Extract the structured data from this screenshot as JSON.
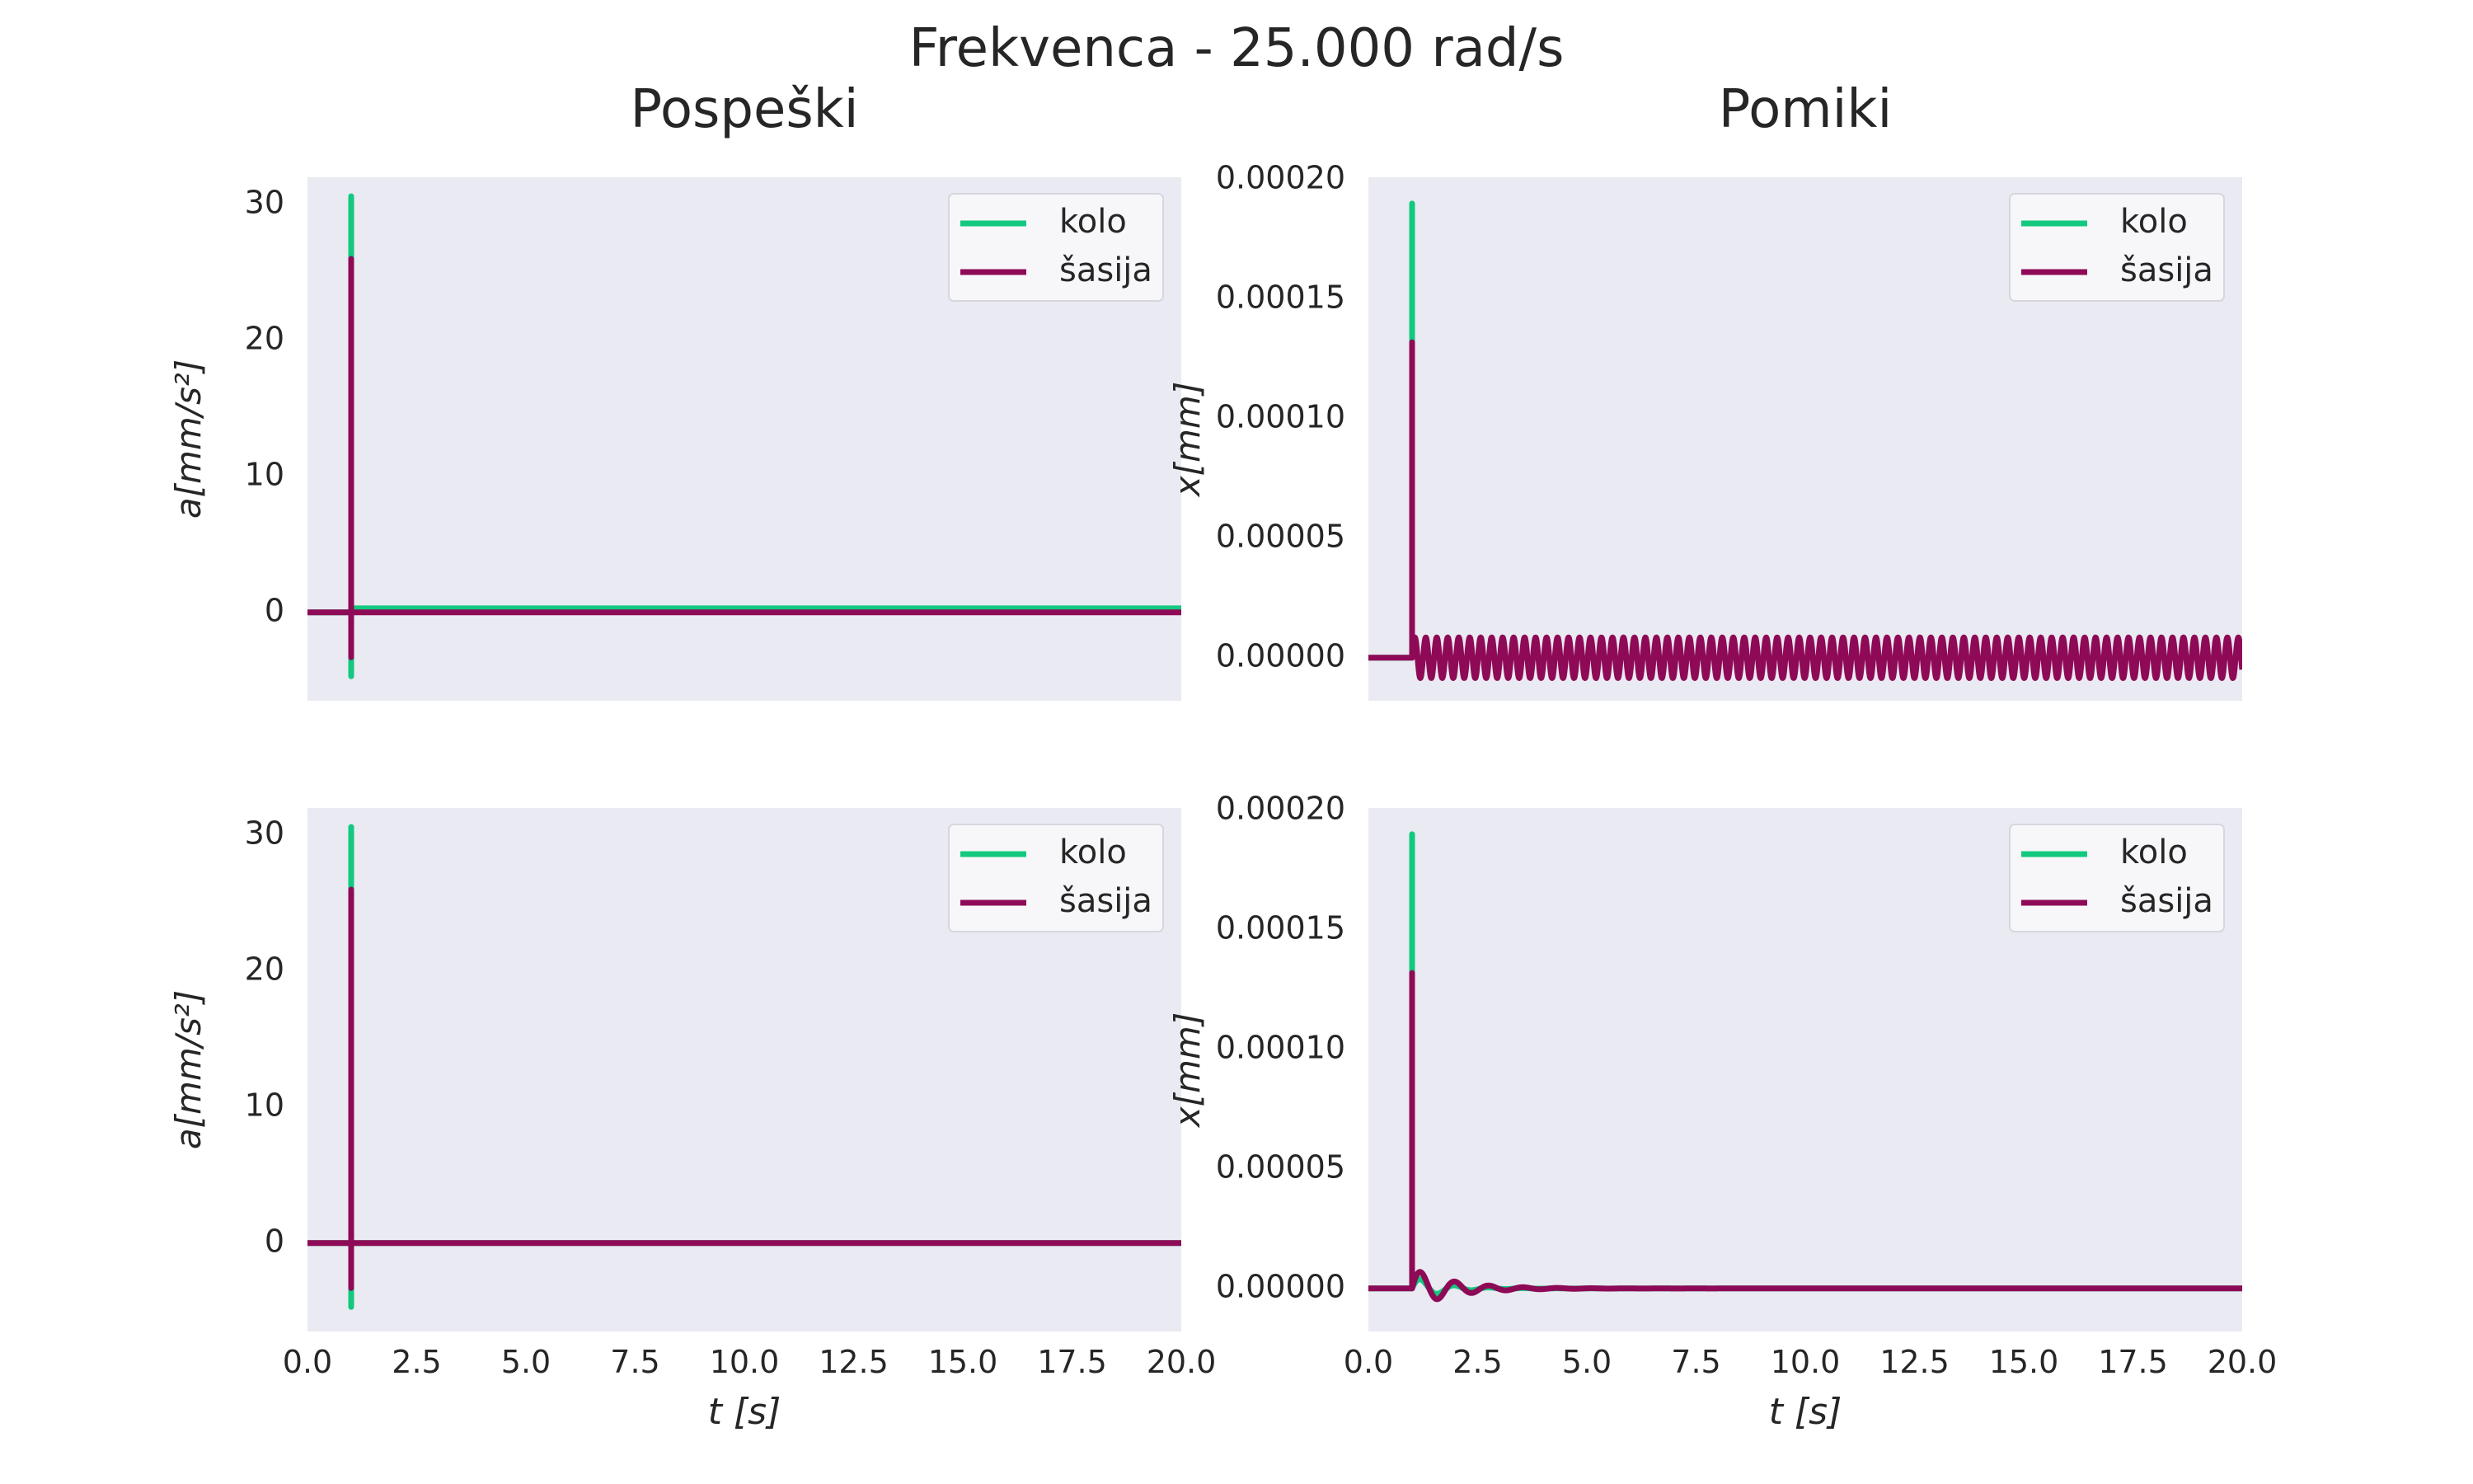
{
  "figure": {
    "suptitle": "Frekvenca - 25.000 rad/s",
    "column_titles": [
      "Pospeški",
      "Pomiki"
    ],
    "background": "#ffffff",
    "axes_background": "#eaeaf2"
  },
  "colors": {
    "kolo": "#12c97f",
    "sasija": "#8e0a56"
  },
  "chart_data": [
    {
      "id": "acc-top",
      "type": "line",
      "ylabel": "a[mm/s²]",
      "xlabel": "",
      "xlim": [
        0,
        20
      ],
      "ylim": [
        -6.5,
        32
      ],
      "yticks": [
        0,
        10,
        20,
        30
      ],
      "ytick_labels": [
        "0",
        "10",
        "20",
        "30"
      ],
      "xticks": [],
      "xtick_labels": [],
      "grid": false,
      "legend_position": "top-right",
      "series": [
        {
          "name": "kolo",
          "color": "#12c97f",
          "x": [
            0,
            1,
            1,
            1,
            1,
            20
          ],
          "y": [
            0,
            0,
            30.6,
            -4.7,
            0.3,
            0.3
          ]
        },
        {
          "name": "šasija",
          "color": "#8e0a56",
          "x": [
            0,
            1,
            1,
            1,
            1,
            20
          ],
          "y": [
            0,
            0,
            26.0,
            -3.3,
            0,
            0
          ]
        }
      ]
    },
    {
      "id": "disp-top",
      "type": "line",
      "ylabel": "x[mm]",
      "xlabel": "",
      "xlim": [
        0,
        20
      ],
      "ylim": [
        -1.8e-05,
        0.000201
      ],
      "yticks": [
        0,
        5e-05,
        0.0001,
        0.00015,
        0.0002
      ],
      "ytick_labels": [
        "0.00000",
        "0.00005",
        "0.00010",
        "0.00015",
        "0.00020"
      ],
      "xticks": [],
      "xtick_labels": [],
      "grid": false,
      "legend_position": "top-right",
      "series": [
        {
          "name": "kolo",
          "color": "#12c97f",
          "spike": {
            "t": 1,
            "peak": 0.00019
          },
          "oscillation": {
            "start": 1,
            "amplitude": 4e-06,
            "offset": 0,
            "omega": 25.0,
            "decay": 0
          }
        },
        {
          "name": "šasija",
          "color": "#8e0a56",
          "spike": {
            "t": 1,
            "peak": 0.000132
          },
          "oscillation": {
            "start": 1,
            "amplitude": 8.5e-06,
            "offset": 0,
            "omega": 25.0,
            "decay": 0
          }
        }
      ]
    },
    {
      "id": "acc-bottom",
      "type": "line",
      "ylabel": "a[mm/s²]",
      "xlabel": "t [s]",
      "xlim": [
        0,
        20
      ],
      "ylim": [
        -6.5,
        32
      ],
      "yticks": [
        0,
        10,
        20,
        30
      ],
      "ytick_labels": [
        "0",
        "10",
        "20",
        "30"
      ],
      "xticks": [
        0,
        2.5,
        5,
        7.5,
        10,
        12.5,
        15,
        17.5,
        20
      ],
      "xtick_labels": [
        "0.0",
        "2.5",
        "5.0",
        "7.5",
        "10.0",
        "12.5",
        "15.0",
        "17.5",
        "20.0"
      ],
      "grid": false,
      "legend_position": "top-right",
      "series": [
        {
          "name": "kolo",
          "color": "#12c97f",
          "x": [
            0,
            1,
            1,
            1,
            1,
            20
          ],
          "y": [
            0,
            0,
            30.6,
            -4.7,
            0,
            0
          ]
        },
        {
          "name": "šasija",
          "color": "#8e0a56",
          "x": [
            0,
            1,
            1,
            1,
            1,
            20
          ],
          "y": [
            0,
            0,
            26.0,
            -3.3,
            0,
            0
          ]
        }
      ]
    },
    {
      "id": "disp-bottom",
      "type": "line",
      "ylabel": "x[mm]",
      "xlabel": "t [s]",
      "xlim": [
        0,
        20
      ],
      "ylim": [
        -1.8e-05,
        0.000201
      ],
      "yticks": [
        0,
        5e-05,
        0.0001,
        0.00015,
        0.0002
      ],
      "ytick_labels": [
        "0.00000",
        "0.00005",
        "0.00010",
        "0.00015",
        "0.00020"
      ],
      "xticks": [
        0,
        2.5,
        5,
        7.5,
        10,
        12.5,
        15,
        17.5,
        20
      ],
      "xtick_labels": [
        "0.0",
        "2.5",
        "5.0",
        "7.5",
        "10.0",
        "12.5",
        "15.0",
        "17.5",
        "20.0"
      ],
      "grid": false,
      "legend_position": "top-right",
      "series": [
        {
          "name": "kolo",
          "color": "#12c97f",
          "spike": {
            "t": 1,
            "peak": 0.00019
          },
          "oscillation": {
            "start": 1,
            "amplitude": 5e-06,
            "offset": 0,
            "omega": 8.0,
            "decay": 1.4
          }
        },
        {
          "name": "šasija",
          "color": "#8e0a56",
          "spike": {
            "t": 1,
            "peak": 0.000132
          },
          "oscillation": {
            "start": 1,
            "amplitude": 8.5e-06,
            "offset": 0,
            "omega": 8.0,
            "decay": 1.1
          }
        }
      ]
    }
  ]
}
